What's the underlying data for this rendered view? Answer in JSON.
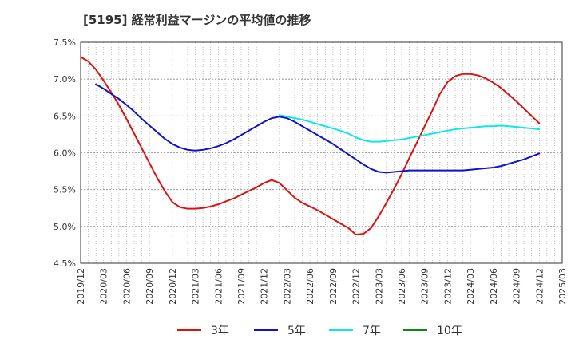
{
  "chart_data": {
    "type": "line",
    "title": "[5195]  経常利益マージンの平均値の推移",
    "xlabel": "",
    "ylabel": "",
    "ylim": [
      4.5,
      7.5
    ],
    "grid": true,
    "legend_position": "bottom",
    "x_ticks": [
      "2019/12",
      "2020/03",
      "2020/06",
      "2020/09",
      "2020/12",
      "2021/03",
      "2021/06",
      "2021/09",
      "2021/12",
      "2022/03",
      "2022/06",
      "2022/09",
      "2022/12",
      "2023/03",
      "2023/06",
      "2023/09",
      "2023/12",
      "2024/03",
      "2024/06",
      "2024/09",
      "2024/12",
      "2025/03"
    ],
    "y_ticks": [
      "4.5%",
      "5.0%",
      "5.5%",
      "6.0%",
      "6.5%",
      "7.0%",
      "7.5%"
    ],
    "series": [
      {
        "name": "3年",
        "color": "#dd1111",
        "x": [
          "2019/12",
          "2020/01",
          "2020/02",
          "2020/03",
          "2020/04",
          "2020/05",
          "2020/06",
          "2020/07",
          "2020/08",
          "2020/09",
          "2020/10",
          "2020/11",
          "2020/12",
          "2021/01",
          "2021/02",
          "2021/03",
          "2021/04",
          "2021/05",
          "2021/06",
          "2021/07",
          "2021/08",
          "2021/09",
          "2021/10",
          "2021/11",
          "2021/12",
          "2022/01",
          "2022/02",
          "2022/03",
          "2022/04",
          "2022/05",
          "2022/06",
          "2022/07",
          "2022/08",
          "2022/09",
          "2022/10",
          "2022/11",
          "2022/12",
          "2023/01",
          "2023/02",
          "2023/03",
          "2023/04",
          "2023/05",
          "2023/06",
          "2023/07",
          "2023/08",
          "2023/09",
          "2023/10",
          "2023/11",
          "2023/12",
          "2024/01",
          "2024/02",
          "2024/03",
          "2024/04",
          "2024/05",
          "2024/06",
          "2024/07",
          "2024/08",
          "2024/09",
          "2024/10",
          "2024/11",
          "2024/12"
        ],
        "values": [
          7.3,
          7.24,
          7.13,
          6.98,
          6.82,
          6.65,
          6.46,
          6.26,
          6.06,
          5.86,
          5.66,
          5.48,
          5.33,
          5.26,
          5.24,
          5.24,
          5.25,
          5.27,
          5.3,
          5.34,
          5.38,
          5.43,
          5.48,
          5.53,
          5.59,
          5.63,
          5.59,
          5.49,
          5.39,
          5.32,
          5.27,
          5.22,
          5.16,
          5.1,
          5.04,
          4.98,
          4.89,
          4.9,
          4.98,
          5.14,
          5.32,
          5.51,
          5.71,
          5.93,
          6.14,
          6.36,
          6.57,
          6.8,
          6.96,
          7.04,
          7.07,
          7.07,
          7.05,
          7.01,
          6.95,
          6.88,
          6.79,
          6.7,
          6.6,
          6.5,
          6.4
        ]
      },
      {
        "name": "5年",
        "color": "#1111cc",
        "x": [
          "2020/02",
          "2020/03",
          "2020/04",
          "2020/05",
          "2020/06",
          "2020/07",
          "2020/08",
          "2020/09",
          "2020/10",
          "2020/11",
          "2020/12",
          "2021/01",
          "2021/02",
          "2021/03",
          "2021/04",
          "2021/05",
          "2021/06",
          "2021/07",
          "2021/08",
          "2021/09",
          "2021/10",
          "2021/11",
          "2021/12",
          "2022/01",
          "2022/02",
          "2022/03",
          "2022/04",
          "2022/05",
          "2022/06",
          "2022/07",
          "2022/08",
          "2022/09",
          "2022/10",
          "2022/11",
          "2022/12",
          "2023/01",
          "2023/02",
          "2023/03",
          "2023/04",
          "2023/05",
          "2023/06",
          "2023/07",
          "2023/08",
          "2023/09",
          "2023/10",
          "2023/11",
          "2023/12",
          "2024/01",
          "2024/02",
          "2024/03",
          "2024/04",
          "2024/05",
          "2024/06",
          "2024/07",
          "2024/08",
          "2024/09",
          "2024/10",
          "2024/11",
          "2024/12"
        ],
        "values": [
          6.93,
          6.87,
          6.8,
          6.73,
          6.65,
          6.56,
          6.46,
          6.37,
          6.28,
          6.19,
          6.12,
          6.07,
          6.04,
          6.03,
          6.04,
          6.06,
          6.09,
          6.13,
          6.18,
          6.24,
          6.3,
          6.36,
          6.42,
          6.47,
          6.49,
          6.47,
          6.42,
          6.36,
          6.3,
          6.24,
          6.18,
          6.12,
          6.05,
          5.98,
          5.91,
          5.84,
          5.78,
          5.74,
          5.73,
          5.74,
          5.75,
          5.76,
          5.76,
          5.76,
          5.76,
          5.76,
          5.76,
          5.76,
          5.76,
          5.77,
          5.78,
          5.79,
          5.8,
          5.82,
          5.85,
          5.88,
          5.91,
          5.95,
          5.99
        ]
      },
      {
        "name": "7年",
        "color": "#11e6e6",
        "x": [
          "2022/02",
          "2022/03",
          "2022/04",
          "2022/05",
          "2022/06",
          "2022/07",
          "2022/08",
          "2022/09",
          "2022/10",
          "2022/11",
          "2022/12",
          "2023/01",
          "2023/02",
          "2023/03",
          "2023/04",
          "2023/05",
          "2023/06",
          "2023/07",
          "2023/08",
          "2023/09",
          "2023/10",
          "2023/11",
          "2023/12",
          "2024/01",
          "2024/02",
          "2024/03",
          "2024/04",
          "2024/05",
          "2024/06",
          "2024/07",
          "2024/08",
          "2024/09",
          "2024/10",
          "2024/11",
          "2024/12"
        ],
        "values": [
          6.51,
          6.49,
          6.47,
          6.45,
          6.42,
          6.39,
          6.36,
          6.33,
          6.3,
          6.26,
          6.21,
          6.17,
          6.15,
          6.15,
          6.16,
          6.17,
          6.18,
          6.2,
          6.22,
          6.24,
          6.26,
          6.28,
          6.3,
          6.32,
          6.33,
          6.34,
          6.35,
          6.36,
          6.36,
          6.37,
          6.36,
          6.35,
          6.34,
          6.33,
          6.32
        ]
      },
      {
        "name": "10年",
        "color": "#118811",
        "x": [],
        "values": []
      }
    ]
  }
}
